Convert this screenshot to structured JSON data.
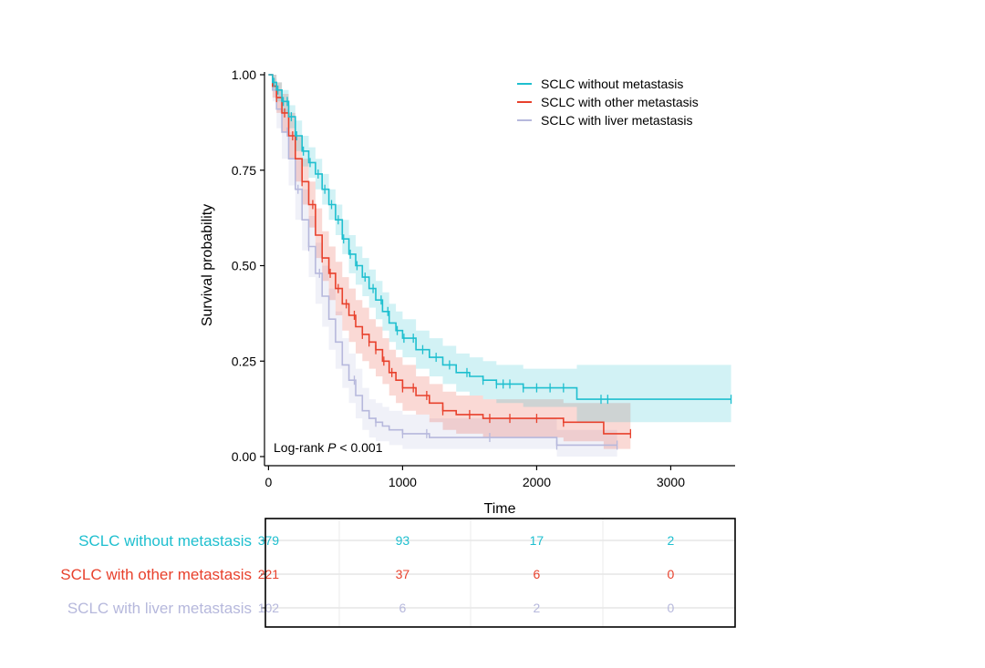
{
  "chart_data": {
    "type": "line",
    "subtype": "kaplan-meier",
    "xlabel": "Time",
    "ylabel": "Survival probability",
    "xlim": [
      -30,
      3480
    ],
    "ylim": [
      0,
      1.0
    ],
    "x_ticks": [
      0,
      1000,
      2000,
      3000
    ],
    "x_tick_labels": [
      "0",
      "1000",
      "2000",
      "3000"
    ],
    "y_ticks": [
      0,
      0.25,
      0.5,
      0.75,
      1.0
    ],
    "y_tick_labels": [
      "0.00",
      "0.25",
      "0.50",
      "0.75",
      "1.00"
    ],
    "legend_position": "top-right",
    "annotation": {
      "prefix": "Log-rank ",
      "italic": "P",
      "suffix": " < 0.001"
    },
    "series": [
      {
        "name": "SCLC without metastasis",
        "color": "#1ebfcf",
        "times": [
          0,
          30,
          60,
          100,
          150,
          200,
          250,
          300,
          350,
          400,
          450,
          500,
          550,
          600,
          650,
          700,
          750,
          800,
          850,
          900,
          950,
          1000,
          1100,
          1200,
          1300,
          1400,
          1500,
          1600,
          1700,
          1800,
          1900,
          2000,
          2100,
          2300,
          2400,
          3450
        ],
        "surv": [
          1.0,
          0.98,
          0.96,
          0.93,
          0.89,
          0.84,
          0.8,
          0.77,
          0.74,
          0.7,
          0.66,
          0.62,
          0.57,
          0.53,
          0.5,
          0.47,
          0.44,
          0.41,
          0.38,
          0.35,
          0.33,
          0.31,
          0.28,
          0.26,
          0.24,
          0.22,
          0.21,
          0.2,
          0.19,
          0.19,
          0.18,
          0.18,
          0.18,
          0.15,
          0.15,
          0.15
        ],
        "upper": [
          1.0,
          1.0,
          0.98,
          0.96,
          0.92,
          0.88,
          0.84,
          0.81,
          0.78,
          0.74,
          0.7,
          0.66,
          0.62,
          0.58,
          0.55,
          0.52,
          0.49,
          0.46,
          0.43,
          0.4,
          0.38,
          0.36,
          0.33,
          0.31,
          0.29,
          0.27,
          0.26,
          0.25,
          0.24,
          0.24,
          0.23,
          0.23,
          0.23,
          0.24,
          0.24,
          0.24
        ],
        "lower": [
          1.0,
          0.96,
          0.93,
          0.9,
          0.86,
          0.8,
          0.76,
          0.73,
          0.7,
          0.66,
          0.62,
          0.58,
          0.53,
          0.48,
          0.45,
          0.42,
          0.39,
          0.36,
          0.33,
          0.3,
          0.28,
          0.26,
          0.23,
          0.21,
          0.19,
          0.17,
          0.16,
          0.15,
          0.14,
          0.14,
          0.13,
          0.13,
          0.13,
          0.09,
          0.09,
          0.09
        ],
        "censor_times": [
          40,
          70,
          110,
          140,
          170,
          210,
          260,
          310,
          370,
          420,
          470,
          520,
          560,
          610,
          660,
          720,
          780,
          840,
          890,
          960,
          1010,
          1080,
          1150,
          1250,
          1350,
          1480,
          1600,
          1700,
          1750,
          1800,
          1900,
          2000,
          2100,
          2200,
          2480,
          2530,
          3450
        ]
      },
      {
        "name": "SCLC with other metastasis",
        "color": "#e8412c",
        "times": [
          0,
          30,
          60,
          100,
          150,
          200,
          250,
          300,
          350,
          400,
          450,
          500,
          550,
          600,
          650,
          700,
          750,
          800,
          850,
          900,
          950,
          1000,
          1100,
          1200,
          1300,
          1400,
          1600,
          1800,
          2000,
          2200,
          2400,
          2500,
          2700
        ],
        "surv": [
          1.0,
          0.97,
          0.94,
          0.9,
          0.84,
          0.78,
          0.72,
          0.66,
          0.58,
          0.52,
          0.48,
          0.44,
          0.4,
          0.37,
          0.34,
          0.32,
          0.3,
          0.28,
          0.25,
          0.22,
          0.2,
          0.18,
          0.16,
          0.14,
          0.12,
          0.11,
          0.1,
          0.1,
          0.1,
          0.09,
          0.09,
          0.06,
          0.06
        ],
        "upper": [
          1.0,
          1.0,
          0.98,
          0.95,
          0.9,
          0.84,
          0.78,
          0.72,
          0.65,
          0.59,
          0.55,
          0.51,
          0.47,
          0.44,
          0.41,
          0.39,
          0.36,
          0.34,
          0.31,
          0.28,
          0.26,
          0.24,
          0.21,
          0.19,
          0.17,
          0.16,
          0.15,
          0.15,
          0.15,
          0.14,
          0.14,
          0.14,
          0.14
        ],
        "lower": [
          1.0,
          0.94,
          0.9,
          0.85,
          0.78,
          0.72,
          0.66,
          0.6,
          0.52,
          0.46,
          0.41,
          0.37,
          0.33,
          0.3,
          0.27,
          0.25,
          0.23,
          0.21,
          0.19,
          0.16,
          0.14,
          0.12,
          0.11,
          0.09,
          0.07,
          0.06,
          0.05,
          0.05,
          0.05,
          0.04,
          0.04,
          0.02,
          0.02
        ],
        "censor_times": [
          60,
          120,
          180,
          250,
          330,
          400,
          460,
          520,
          580,
          640,
          700,
          750,
          800,
          860,
          920,
          1000,
          1080,
          1180,
          1300,
          1500,
          1650,
          1800,
          2000,
          2200,
          2700
        ]
      },
      {
        "name": "SCLC with liver metastasis",
        "color": "#b6b8dc",
        "times": [
          0,
          30,
          60,
          100,
          150,
          200,
          250,
          300,
          350,
          400,
          450,
          500,
          550,
          600,
          650,
          700,
          750,
          800,
          850,
          900,
          1000,
          1100,
          1200,
          1400,
          1600,
          1800,
          2000,
          2100,
          2150,
          2500,
          2600
        ],
        "surv": [
          1.0,
          0.96,
          0.91,
          0.85,
          0.78,
          0.7,
          0.62,
          0.55,
          0.48,
          0.42,
          0.36,
          0.3,
          0.24,
          0.2,
          0.16,
          0.12,
          0.1,
          0.09,
          0.08,
          0.07,
          0.06,
          0.06,
          0.05,
          0.05,
          0.05,
          0.05,
          0.05,
          0.05,
          0.03,
          0.03,
          0.03
        ],
        "upper": [
          1.0,
          0.99,
          0.96,
          0.91,
          0.85,
          0.78,
          0.7,
          0.63,
          0.56,
          0.5,
          0.44,
          0.38,
          0.31,
          0.27,
          0.23,
          0.18,
          0.15,
          0.14,
          0.13,
          0.12,
          0.11,
          0.11,
          0.1,
          0.1,
          0.1,
          0.1,
          0.1,
          0.1,
          0.07,
          0.07,
          0.07
        ],
        "lower": [
          1.0,
          0.93,
          0.86,
          0.78,
          0.71,
          0.62,
          0.54,
          0.47,
          0.4,
          0.34,
          0.28,
          0.23,
          0.18,
          0.14,
          0.1,
          0.07,
          0.05,
          0.04,
          0.04,
          0.03,
          0.02,
          0.02,
          0.02,
          0.02,
          0.02,
          0.02,
          0.02,
          0.02,
          0.0,
          0.0,
          0.0
        ],
        "censor_times": [
          140,
          220,
          300,
          380,
          640,
          800,
          1000,
          1180,
          1650,
          2150,
          2600
        ]
      }
    ]
  },
  "risk_table": {
    "time_points": [
      0,
      1000,
      2000,
      3000
    ],
    "rows": [
      {
        "label": "SCLC without metastasis",
        "color": "#1ebfcf",
        "counts": [
          "379",
          "93",
          "17",
          "2"
        ]
      },
      {
        "label": "SCLC with other metastasis",
        "color": "#e8412c",
        "counts": [
          "221",
          "37",
          "6",
          "0"
        ]
      },
      {
        "label": "SCLC with liver metastasis",
        "color": "#b6b8dc",
        "counts": [
          "102",
          "6",
          "2",
          "0"
        ]
      }
    ]
  }
}
